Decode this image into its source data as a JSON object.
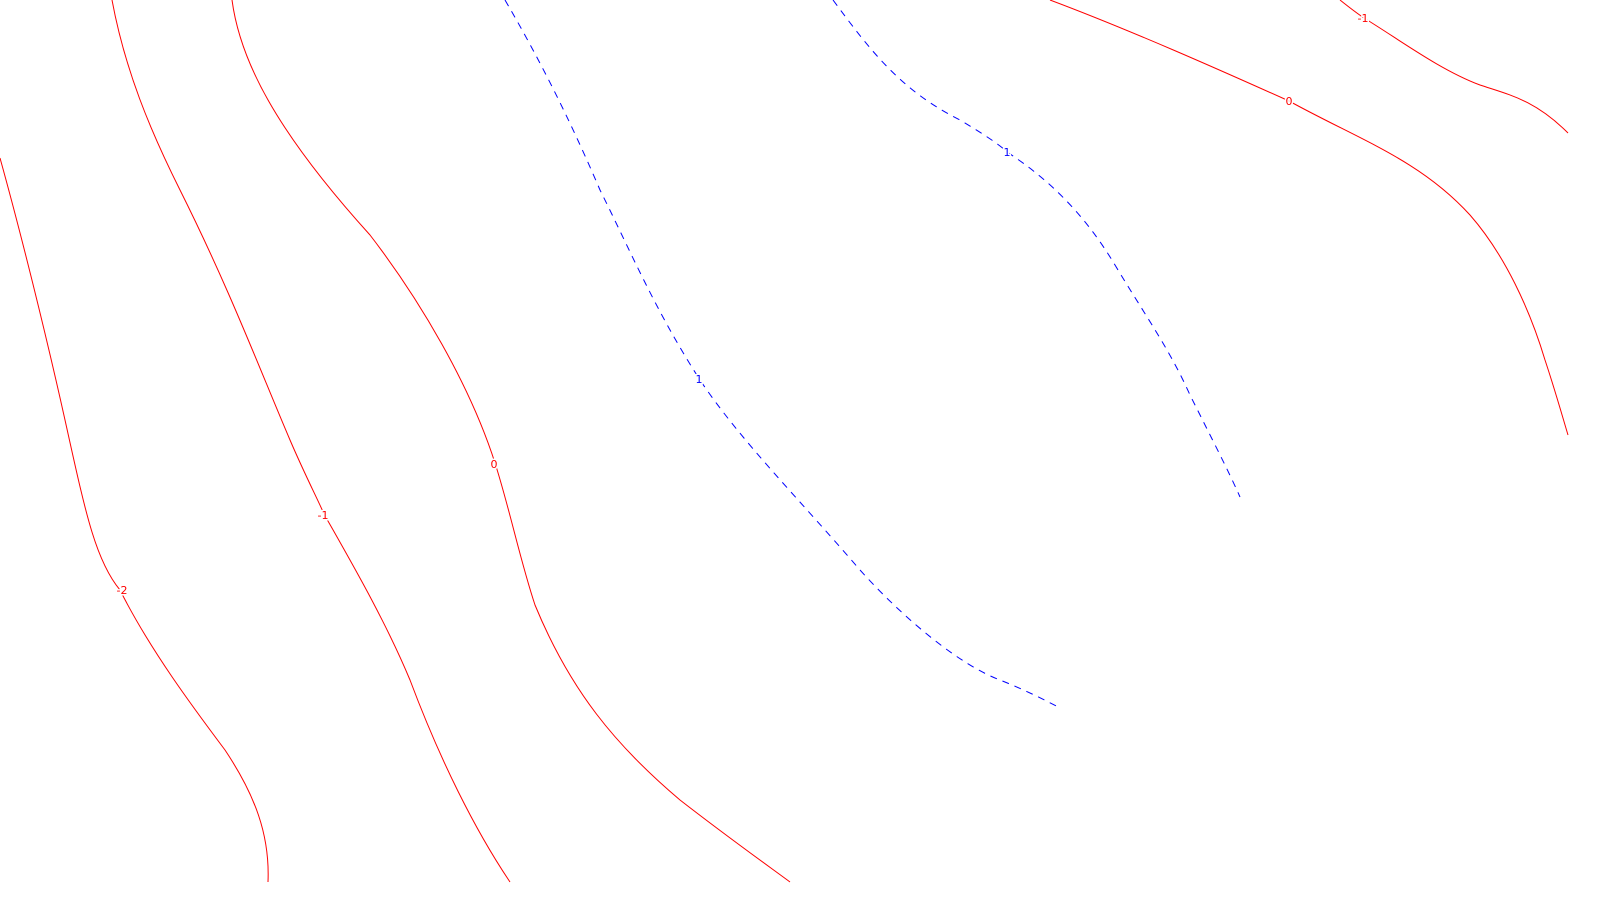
{
  "map": {
    "colors": {
      "positive": "#0000ff",
      "negative_zero": "#ff0000",
      "background": "#ffffff"
    },
    "line_styles": {
      "positive": "dashed",
      "negative_zero": "solid"
    },
    "contours": [
      {
        "level": "-2",
        "sign": "negative_zero"
      },
      {
        "level": "-1",
        "sign": "negative_zero"
      },
      {
        "level": "0",
        "sign": "negative_zero"
      },
      {
        "level": "1",
        "sign": "positive"
      },
      {
        "level": "1",
        "sign": "positive"
      },
      {
        "level": "0",
        "sign": "negative_zero"
      },
      {
        "level": "-1",
        "sign": "negative_zero"
      }
    ]
  }
}
